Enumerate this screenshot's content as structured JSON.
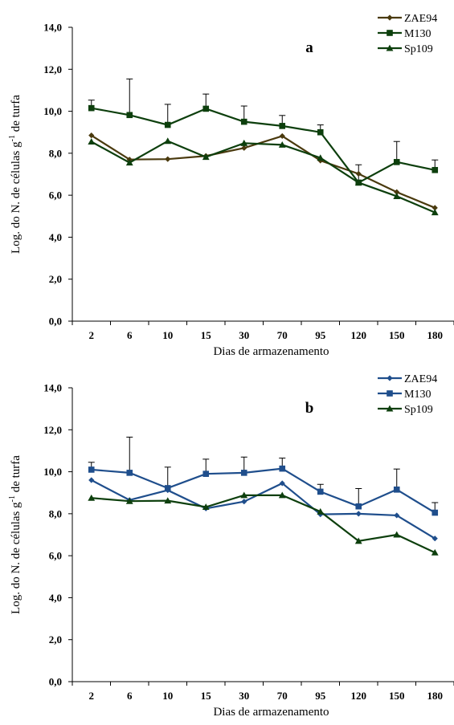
{
  "chart_data": [
    {
      "type": "line",
      "panel_label": "a",
      "categories": [
        "2",
        "6",
        "10",
        "15",
        "30",
        "70",
        "95",
        "120",
        "150",
        "180"
      ],
      "xlabel": "Dias de armazenamento",
      "ylabel": "Log. do N. de células g-1 de turfa",
      "ylabel_parts": [
        "Log. do N. de células g",
        "-1",
        " de turfa"
      ],
      "ylim": [
        0,
        14
      ],
      "yticks": [
        "0,0",
        "2,0",
        "4,0",
        "6,0",
        "8,0",
        "10,0",
        "12,0",
        "14,0"
      ],
      "grid": false,
      "legend": "top-right",
      "series": [
        {
          "name": "ZAE94",
          "marker": "diamond",
          "color": "#4a3a0e",
          "values": [
            8.85,
            7.7,
            7.72,
            7.87,
            8.25,
            8.82,
            7.65,
            7.02,
            6.15,
            5.4
          ]
        },
        {
          "name": "M130",
          "marker": "square",
          "color": "#0d3f0d",
          "values": [
            10.15,
            9.82,
            9.35,
            10.12,
            9.5,
            9.3,
            9.0,
            6.6,
            7.58,
            7.2
          ],
          "error_plus": [
            0.38,
            1.72,
            0.98,
            0.7,
            0.75,
            0.5,
            0.35,
            0.85,
            0.98,
            0.48
          ]
        },
        {
          "name": "Sp109",
          "marker": "triangle",
          "color": "#0d3f0d",
          "values": [
            8.55,
            7.55,
            8.58,
            7.82,
            8.48,
            8.4,
            7.78,
            6.6,
            5.95,
            5.18
          ]
        }
      ]
    },
    {
      "type": "line",
      "panel_label": "b",
      "categories": [
        "2",
        "6",
        "10",
        "15",
        "30",
        "70",
        "95",
        "120",
        "150",
        "180"
      ],
      "xlabel": "Dias de armazenamento",
      "ylabel": "Log. do N. de células g-1 de turfa",
      "ylabel_parts": [
        "Log. do N. de células g",
        "-1",
        " de turfa"
      ],
      "ylim": [
        0,
        14
      ],
      "yticks": [
        "0,0",
        "2,0",
        "4,0",
        "6,0",
        "8,0",
        "10,0",
        "12,0",
        "14,0"
      ],
      "grid": false,
      "legend": "top-right",
      "series": [
        {
          "name": "ZAE94",
          "marker": "diamond",
          "color": "#1f4e8c",
          "values": [
            9.6,
            8.65,
            9.12,
            8.25,
            8.58,
            9.45,
            7.97,
            8.0,
            7.92,
            6.82
          ]
        },
        {
          "name": "M130",
          "marker": "square",
          "color": "#1f4e8c",
          "values": [
            10.1,
            9.95,
            9.22,
            9.9,
            9.95,
            10.15,
            9.05,
            8.35,
            9.15,
            8.05
          ],
          "error_plus": [
            0.35,
            1.7,
            1.0,
            0.7,
            0.75,
            0.5,
            0.35,
            0.85,
            0.98,
            0.48
          ]
        },
        {
          "name": "Sp109",
          "marker": "triangle",
          "color": "#0d3f0d",
          "values": [
            8.75,
            8.6,
            8.62,
            8.32,
            8.88,
            8.88,
            8.1,
            6.7,
            7.0,
            6.15
          ]
        }
      ]
    }
  ]
}
